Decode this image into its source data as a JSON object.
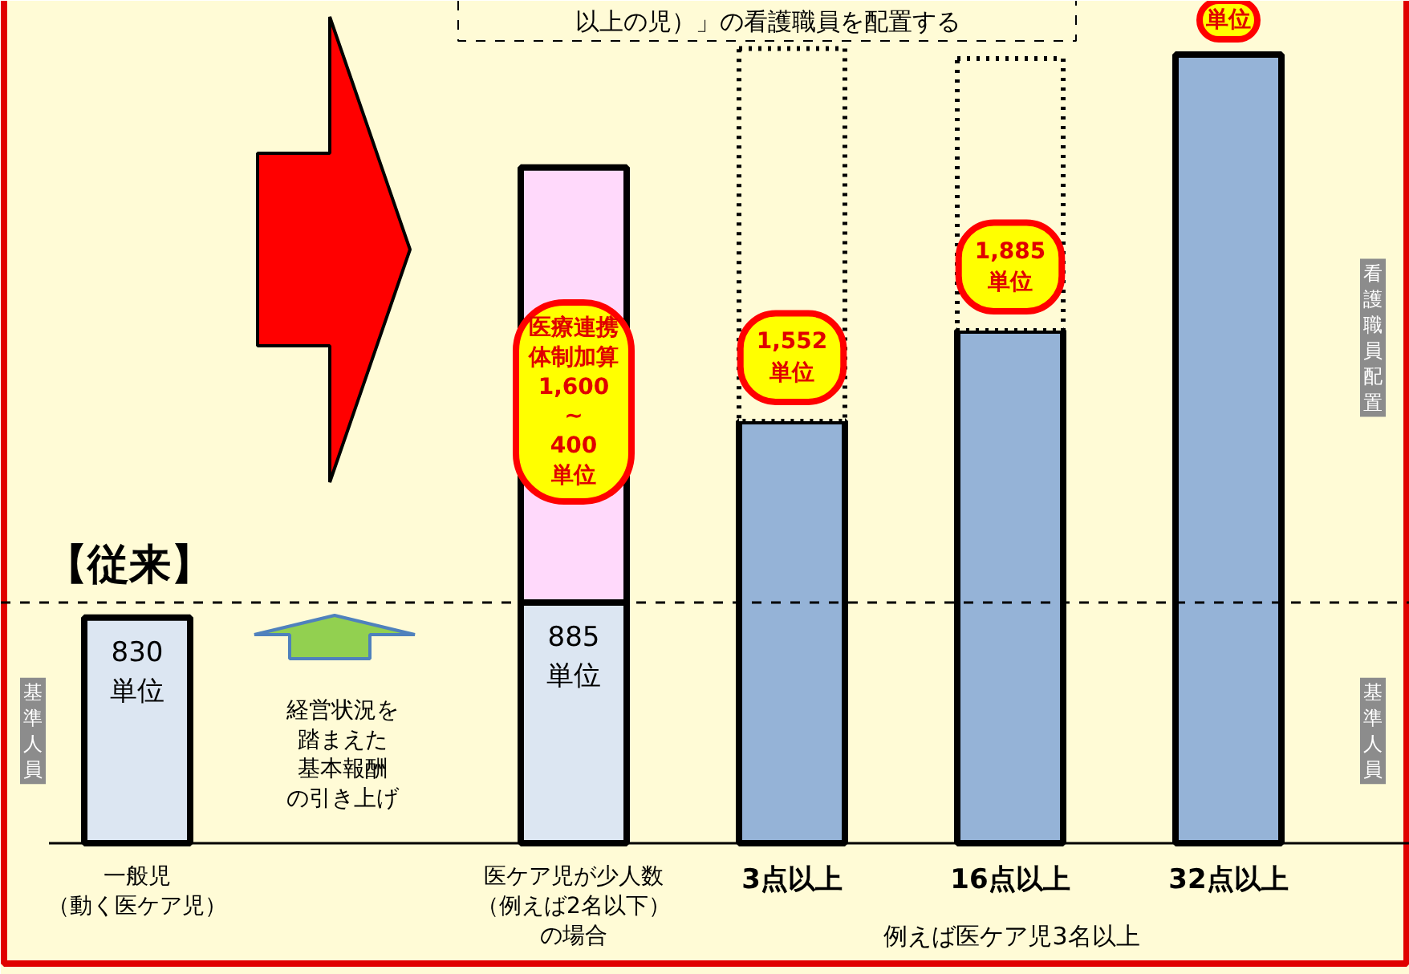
{
  "chart_data": {
    "type": "bar",
    "stacked": true,
    "grid": false,
    "categories": [
      "一般児（動く医ケア児）",
      null,
      "医ケア児が少人数（例えば2名以下）の場合",
      "3点以上",
      "16点以上",
      "32点以上"
    ],
    "series": [
      {
        "colors": [
          "#dce6f2",
          null,
          "#dce6f2",
          "#95b3d7",
          "#95b3d7",
          "#95b3d7"
        ],
        "values": [
          830,
          null,
          885,
          1552,
          1885,
          2900
        ],
        "value_labels": [
          "830\n単位",
          null,
          "885\n単位",
          "1,552\n単位",
          "1,885\n単位",
          null
        ]
      },
      {
        "color": "#ffd9fb",
        "values": [
          null,
          null,
          1600,
          null,
          null,
          null
        ]
      },
      {
        "color": "#fffbd6",
        "line_style": "dotted",
        "values": [
          null,
          null,
          null,
          1370,
          1000,
          null
        ]
      }
    ],
    "ref_lines": [
      {
        "axis": "y",
        "value": 885,
        "line_style": "dashed"
      }
    ],
    "annotations": [
      "以上の児）」の看護職員を配置する",
      "【従来】",
      "経営状況を踏まえた基本報酬の引き上げ",
      "医療連携体制加算1,600~400単位",
      "例えば医ケア児3名以上",
      "看護職員配置",
      "基準人員",
      "基準人員",
      "単位"
    ]
  }
}
